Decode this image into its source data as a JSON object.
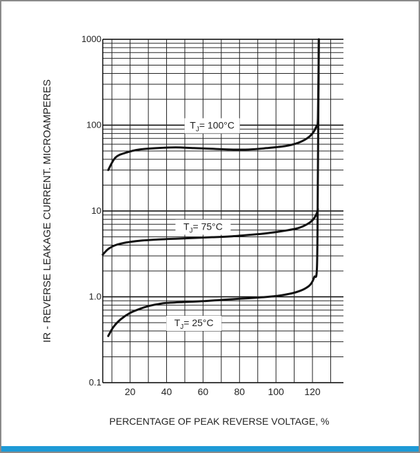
{
  "chart_data": {
    "type": "line",
    "xlabel": "PERCENTAGE OF PEAK REVERSE VOLTAGE, %",
    "ylabel": "IR - REVERSE LEAKAGE CURRENT. MICROAMPERES",
    "y_scale": "log",
    "xlim": [
      5,
      137
    ],
    "ylim": [
      0.1,
      1000
    ],
    "x_ticks": [
      "20",
      "40",
      "60",
      "80",
      "100",
      "120"
    ],
    "y_ticks": [
      "0.1",
      "1.0",
      "10",
      "100",
      "1000"
    ],
    "grid": true,
    "accent_color": "#1e9ad6",
    "series": [
      {
        "name": "TJ= 100°C",
        "label_main": "T",
        "label_sub": "J",
        "label_rest": "= 100°C",
        "x": [
          8,
          12,
          18,
          25,
          35,
          45,
          55,
          65,
          75,
          85,
          95,
          105,
          112,
          117,
          120,
          122,
          123,
          123.5
        ],
        "y": [
          30,
          42,
          48,
          52,
          54,
          55,
          54,
          53,
          52,
          52,
          54,
          57,
          62,
          70,
          80,
          95,
          120,
          1000
        ]
      },
      {
        "name": "TJ= 75°C",
        "label_main": "T",
        "label_sub": "J",
        "label_rest": "= 75°C",
        "x": [
          5,
          8,
          12,
          18,
          25,
          35,
          45,
          55,
          65,
          75,
          85,
          95,
          105,
          112,
          117,
          120,
          122,
          123
        ],
        "y": [
          3.1,
          3.6,
          4.0,
          4.3,
          4.5,
          4.65,
          4.75,
          4.85,
          4.95,
          5.05,
          5.25,
          5.5,
          5.9,
          6.3,
          7.0,
          7.8,
          9.0,
          10.5
        ]
      },
      {
        "name": "TJ= 25°C",
        "label_main": "T",
        "label_sub": "J",
        "label_rest": "= 25°C",
        "x": [
          8,
          11,
          15,
          20,
          25,
          30,
          35,
          40,
          50,
          60,
          70,
          80,
          90,
          100,
          107,
          112,
          116,
          119,
          121,
          122.5,
          123,
          123.5
        ],
        "y": [
          0.35,
          0.45,
          0.55,
          0.65,
          0.72,
          0.78,
          0.82,
          0.85,
          0.87,
          0.89,
          0.92,
          0.95,
          0.98,
          1.02,
          1.08,
          1.15,
          1.25,
          1.4,
          1.7,
          2.3,
          30,
          1000
        ]
      }
    ]
  }
}
